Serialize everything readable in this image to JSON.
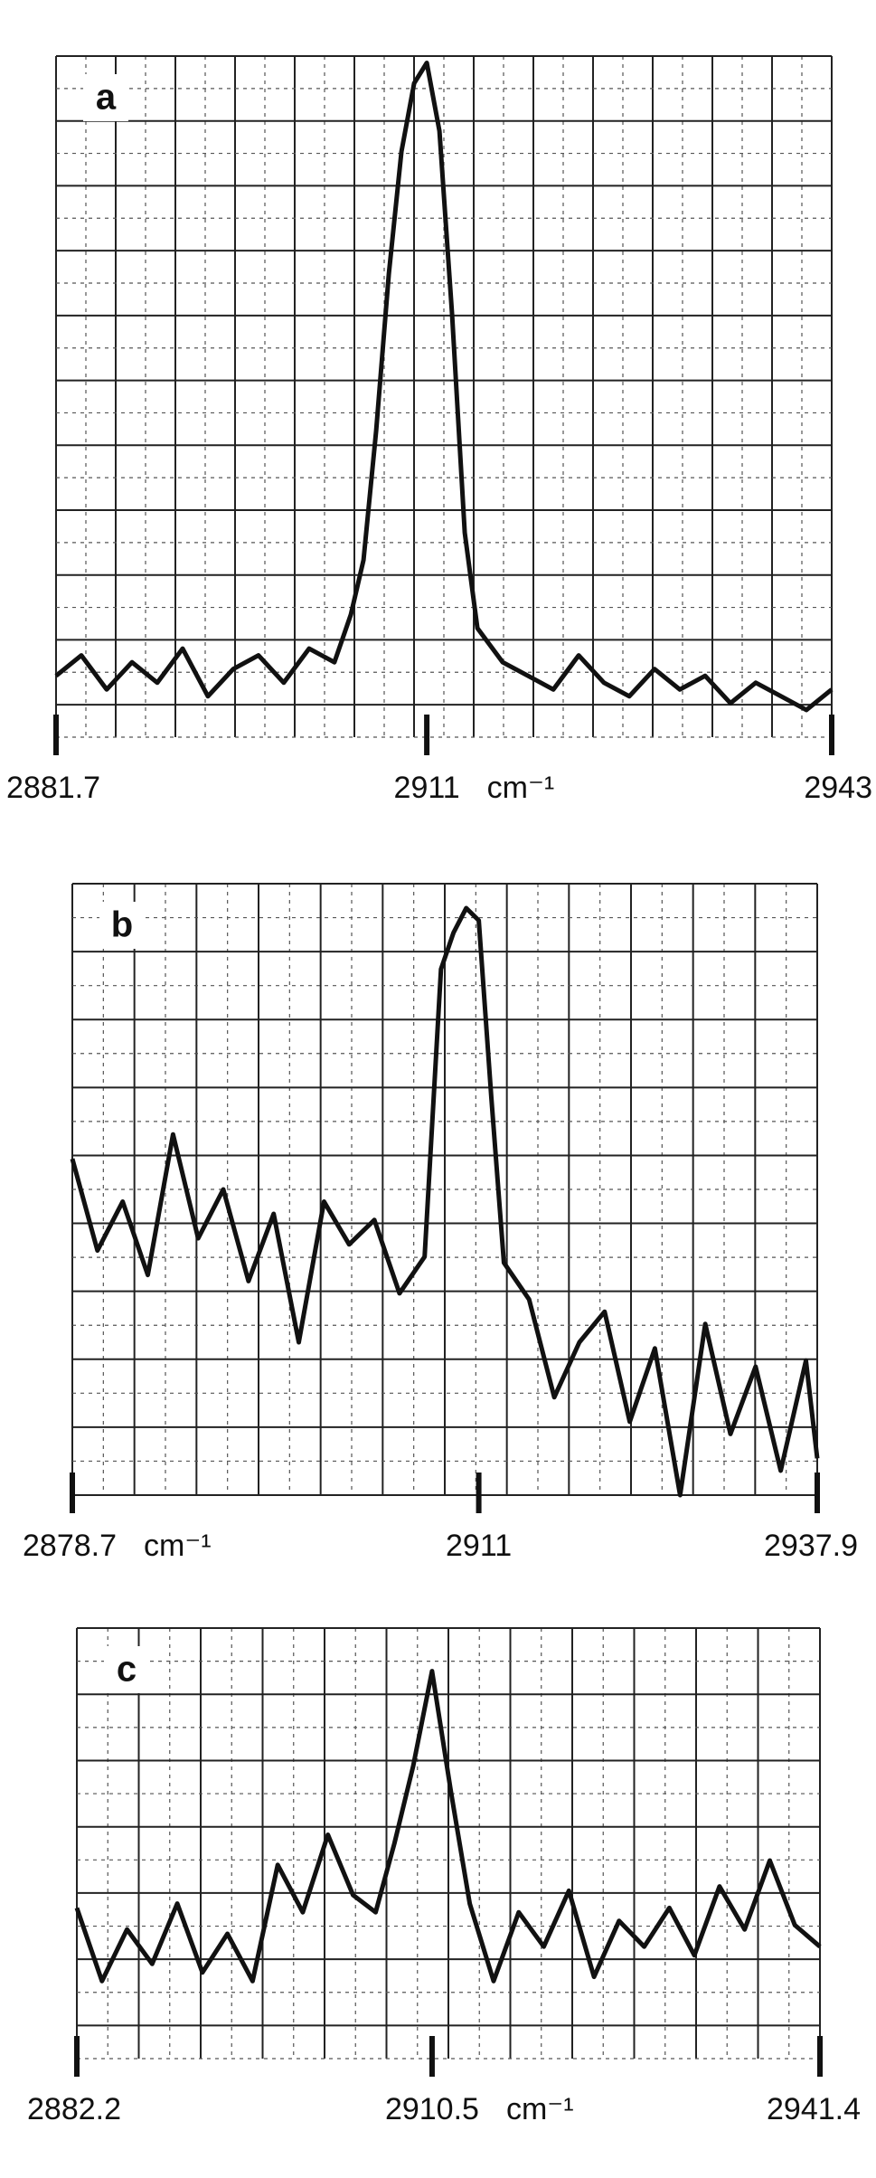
{
  "chart_data": [
    {
      "type": "line",
      "panel_label": "a",
      "x_label": "cm⁻¹",
      "color": "#111111",
      "x": [
        2881.7,
        2883.7,
        2885.7,
        2887.7,
        2889.7,
        2891.7,
        2893.7,
        2895.7,
        2897.7,
        2899.7,
        2901.7,
        2903.7,
        2905,
        2906,
        2907,
        2908,
        2909,
        2910,
        2911,
        2912,
        2913,
        2914,
        2915,
        2917,
        2919,
        2921,
        2923,
        2925,
        2927,
        2929,
        2931,
        2933,
        2935,
        2937,
        2939,
        2941,
        2943
      ],
      "values": [
        0.9,
        1.2,
        0.7,
        1.1,
        0.8,
        1.3,
        0.6,
        1.0,
        1.2,
        0.8,
        1.3,
        1.1,
        1.8,
        2.6,
        4.5,
        6.8,
        8.6,
        9.6,
        9.9,
        8.9,
        6.2,
        3.0,
        1.6,
        1.1,
        0.9,
        0.7,
        1.2,
        0.8,
        0.6,
        1.0,
        0.7,
        0.9,
        0.5,
        0.8,
        0.6,
        0.4,
        0.7
      ],
      "xlim": [
        2881.7,
        2943
      ],
      "xticks": [
        2881.7,
        2911,
        2943
      ],
      "ylim": [
        0,
        10
      ]
    },
    {
      "type": "line",
      "panel_label": "b",
      "x_label": "cm⁻¹",
      "color": "#111111",
      "x": [
        2878.7,
        2880.7,
        2882.7,
        2884.7,
        2886.7,
        2888.7,
        2890.7,
        2892.7,
        2894.7,
        2896.7,
        2898.7,
        2900.7,
        2902.7,
        2904.7,
        2906.7,
        2908,
        2909,
        2910,
        2911,
        2912,
        2913,
        2915,
        2917,
        2919,
        2921,
        2923,
        2925,
        2927,
        2929,
        2931,
        2933,
        2935,
        2937,
        2937.9
      ],
      "values": [
        5.5,
        4.0,
        4.8,
        3.6,
        5.9,
        4.2,
        5.0,
        3.5,
        4.6,
        2.5,
        4.8,
        4.1,
        4.5,
        3.3,
        3.9,
        8.6,
        9.2,
        9.6,
        9.4,
        6.5,
        3.8,
        3.2,
        1.6,
        2.5,
        3.0,
        1.2,
        2.4,
        0.0,
        2.8,
        1.0,
        2.1,
        0.4,
        2.2,
        0.6
      ],
      "xlim": [
        2878.7,
        2937.9
      ],
      "xticks": [
        2878.7,
        2911,
        2937.9
      ],
      "ylim": [
        0,
        10
      ]
    },
    {
      "type": "line",
      "panel_label": "c",
      "x_label": "cm⁻¹",
      "color": "#111111",
      "x": [
        2882.2,
        2884.2,
        2886.2,
        2888.2,
        2890.2,
        2892.2,
        2894.2,
        2896.2,
        2898.2,
        2900.2,
        2902.2,
        2904.2,
        2906,
        2907.5,
        2909,
        2910.5,
        2912,
        2913.5,
        2915.4,
        2917.4,
        2919.4,
        2921.4,
        2923.4,
        2925.4,
        2927.4,
        2929.4,
        2931.4,
        2933.4,
        2935.4,
        2937.4,
        2939.4,
        2941.4
      ],
      "values": [
        3.5,
        1.8,
        3.0,
        2.2,
        3.6,
        2.0,
        2.9,
        1.8,
        4.5,
        3.4,
        5.2,
        3.8,
        3.4,
        5.0,
        6.8,
        9.0,
        6.2,
        3.6,
        1.8,
        3.4,
        2.6,
        3.9,
        1.9,
        3.2,
        2.6,
        3.5,
        2.4,
        4.0,
        3.0,
        4.6,
        3.1,
        2.6
      ],
      "xlim": [
        2882.2,
        2941.4
      ],
      "xticks": [
        2882.2,
        2910.5,
        2941.4
      ],
      "ylim": [
        0,
        10
      ]
    }
  ]
}
